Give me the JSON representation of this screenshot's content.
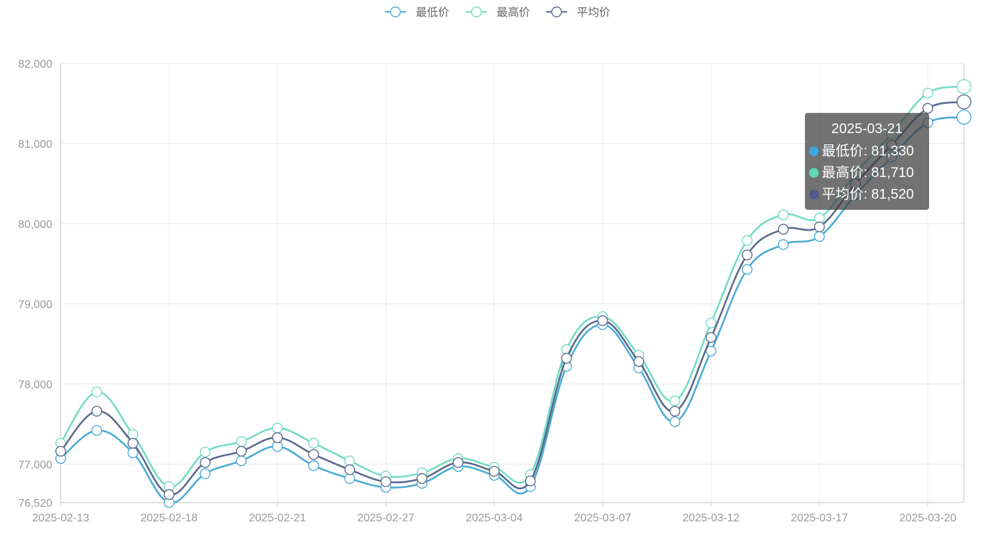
{
  "chart_data": {
    "type": "line",
    "smooth": true,
    "x": [
      "2025-02-13",
      "2025-02-14",
      "2025-02-17",
      "2025-02-18",
      "2025-02-19",
      "2025-02-20",
      "2025-02-21",
      "2025-02-24",
      "2025-02-25",
      "2025-02-27",
      "2025-02-28",
      "2025-03-03",
      "2025-03-04",
      "2025-03-05",
      "2025-03-06",
      "2025-03-07",
      "2025-03-10",
      "2025-03-11",
      "2025-03-12",
      "2025-03-13",
      "2025-03-14",
      "2025-03-17",
      "2025-03-18",
      "2025-03-19",
      "2025-03-20",
      "2025-03-21"
    ],
    "xtick_labels": [
      "2025-02-13",
      "2025-02-18",
      "2025-02-21",
      "2025-02-27",
      "2025-03-04",
      "2025-03-07",
      "2025-03-12",
      "2025-03-17",
      "2025-03-20"
    ],
    "series": [
      {
        "name": "最低价",
        "color": "#4babd6",
        "values": [
          77070,
          77420,
          77140,
          76520,
          76880,
          77040,
          77220,
          76980,
          76820,
          76710,
          76760,
          76970,
          76860,
          76720,
          78220,
          78740,
          78200,
          77530,
          78410,
          79430,
          79740,
          79840,
          80360,
          80830,
          81260,
          81330
        ]
      },
      {
        "name": "最高价",
        "color": "#73dbc4",
        "values": [
          77260,
          77900,
          77370,
          76720,
          77150,
          77280,
          77450,
          77260,
          77040,
          76850,
          76890,
          77070,
          76960,
          76870,
          78430,
          78840,
          78360,
          77790,
          78760,
          79790,
          80110,
          80070,
          80630,
          81120,
          81630,
          81710
        ]
      },
      {
        "name": "平均价",
        "color": "#5b6a8c",
        "values": [
          77160,
          77660,
          77260,
          76620,
          77020,
          77160,
          77330,
          77120,
          76930,
          76780,
          76820,
          77020,
          76910,
          76790,
          78320,
          78790,
          78280,
          77660,
          78580,
          79610,
          79930,
          79960,
          80500,
          80980,
          81440,
          81520
        ]
      }
    ],
    "ylim": [
      76520,
      82000
    ],
    "yticks": [
      76520,
      77000,
      78000,
      79000,
      80000,
      81000,
      82000
    ],
    "ytick_labels": [
      "76,520",
      "77,000",
      "78,000",
      "79,000",
      "80,000",
      "81,000",
      "82,000"
    ],
    "grid": true,
    "legend_position": "top-center",
    "tooltip": {
      "title": "2025-03-21",
      "rows": [
        {
          "label": "最低价: 81,330",
          "color": "#3fa7dc"
        },
        {
          "label": "最高价: 81,710",
          "color": "#5fd8b8"
        },
        {
          "label": "平均价: 81,520",
          "color": "#4f5a88"
        }
      ]
    }
  }
}
